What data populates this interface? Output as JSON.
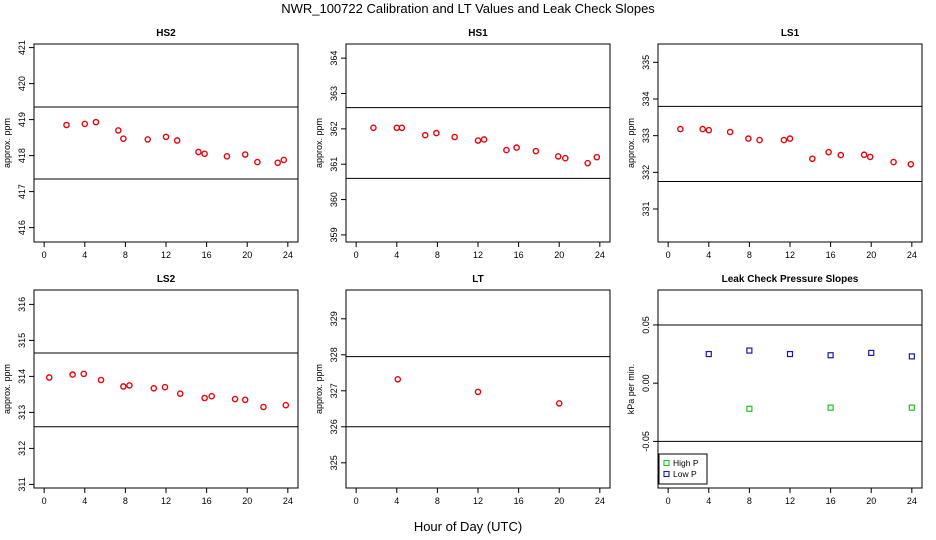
{
  "figure": {
    "title": "NWR_100722  Calibration and LT Values and Leak Check Slopes",
    "xlabel": "Hour of Day (UTC)"
  },
  "colors": {
    "red": "#e8000b",
    "green": "#22c022",
    "blue": "#1a1aaa",
    "line": "#000000"
  },
  "chart_data": [
    {
      "type": "scatter",
      "title": "HS2",
      "ylabel": "approx. ppm",
      "xlim": [
        -1,
        25
      ],
      "ylim": [
        415.6,
        421.1
      ],
      "xticks": [
        0,
        4,
        8,
        12,
        16,
        20,
        24
      ],
      "yticks": [
        416,
        417,
        418,
        419,
        420,
        421
      ],
      "hlines": [
        419.35,
        417.35
      ],
      "series": [
        {
          "color": "red",
          "marker": "circle",
          "x": [
            2.2,
            4.0,
            5.1,
            7.3,
            7.8,
            10.2,
            12.0,
            13.1,
            15.2,
            15.8,
            18.0,
            19.8,
            21.0,
            23.0,
            23.6
          ],
          "y": [
            418.85,
            418.88,
            418.93,
            418.7,
            418.47,
            418.45,
            418.52,
            418.42,
            418.1,
            418.05,
            417.98,
            418.03,
            417.82,
            417.8,
            417.88
          ]
        }
      ]
    },
    {
      "type": "scatter",
      "title": "HS1",
      "ylabel": "approx. ppm",
      "xlim": [
        -1,
        25
      ],
      "ylim": [
        358.8,
        364.4
      ],
      "xticks": [
        0,
        4,
        8,
        12,
        16,
        20,
        24
      ],
      "yticks": [
        359,
        360,
        361,
        362,
        363,
        364
      ],
      "hlines": [
        362.6,
        360.6
      ],
      "series": [
        {
          "color": "red",
          "marker": "circle",
          "x": [
            1.7,
            4.0,
            4.5,
            6.8,
            7.9,
            9.7,
            12.0,
            12.6,
            14.8,
            15.8,
            17.7,
            19.9,
            20.6,
            22.8,
            23.7
          ],
          "y": [
            362.03,
            362.03,
            362.03,
            361.82,
            361.88,
            361.77,
            361.67,
            361.7,
            361.4,
            361.47,
            361.37,
            361.22,
            361.17,
            361.03,
            361.2
          ]
        }
      ]
    },
    {
      "type": "scatter",
      "title": "LS1",
      "ylabel": "approx. ppm",
      "xlim": [
        -1,
        25
      ],
      "ylim": [
        330.1,
        335.5
      ],
      "xticks": [
        0,
        4,
        8,
        12,
        16,
        20,
        24
      ],
      "yticks": [
        331,
        332,
        333,
        334,
        335
      ],
      "hlines": [
        333.8,
        331.75
      ],
      "series": [
        {
          "color": "red",
          "marker": "circle",
          "x": [
            1.2,
            3.4,
            4.0,
            6.1,
            7.9,
            9.0,
            11.4,
            12.0,
            14.2,
            15.8,
            17.0,
            19.3,
            19.9,
            22.2,
            23.9
          ],
          "y": [
            333.18,
            333.18,
            333.15,
            333.1,
            332.92,
            332.88,
            332.88,
            332.92,
            332.37,
            332.55,
            332.47,
            332.48,
            332.42,
            332.28,
            332.22
          ]
        }
      ]
    },
    {
      "type": "scatter",
      "title": "LS2",
      "ylabel": "approx. ppm",
      "xlim": [
        -1,
        25
      ],
      "ylim": [
        310.9,
        316.4
      ],
      "xticks": [
        0,
        4,
        8,
        12,
        16,
        20,
        24
      ],
      "yticks": [
        311,
        312,
        313,
        314,
        315,
        316
      ],
      "hlines": [
        314.65,
        312.6
      ],
      "series": [
        {
          "color": "red",
          "marker": "circle",
          "x": [
            0.5,
            2.8,
            3.9,
            5.6,
            7.8,
            8.4,
            10.8,
            11.9,
            13.4,
            15.8,
            16.5,
            18.8,
            19.8,
            21.6,
            23.8
          ],
          "y": [
            313.97,
            314.05,
            314.07,
            313.9,
            313.72,
            313.75,
            313.67,
            313.7,
            313.52,
            313.4,
            313.45,
            313.37,
            313.35,
            313.15,
            313.2
          ]
        }
      ]
    },
    {
      "type": "scatter",
      "title": "LT",
      "ylabel": "approx. ppm",
      "xlim": [
        -1,
        25
      ],
      "ylim": [
        324.3,
        329.8
      ],
      "xticks": [
        0,
        4,
        8,
        12,
        16,
        20,
        24
      ],
      "yticks": [
        325,
        326,
        327,
        328,
        329
      ],
      "hlines": [
        327.95,
        326.0
      ],
      "series": [
        {
          "color": "red",
          "marker": "circle",
          "x": [
            4.1,
            12.0,
            20.0
          ],
          "y": [
            327.32,
            326.97,
            326.65
          ]
        }
      ]
    },
    {
      "type": "scatter",
      "title": "Leak Check Pressure Slopes",
      "ylabel": "kPa per min.",
      "xlim": [
        -1,
        25
      ],
      "ylim": [
        -0.09,
        0.08
      ],
      "xticks": [
        0,
        4,
        8,
        12,
        16,
        20,
        24
      ],
      "yticks": [
        -0.05,
        0.0,
        0.05
      ],
      "ytick_labels": [
        "-0.05",
        "0.00",
        "0.05"
      ],
      "hlines": [
        0.05,
        -0.05
      ],
      "legend": {
        "placement": "bottom-left",
        "entries": [
          "High P",
          "Low P"
        ]
      },
      "series": [
        {
          "name": "High P",
          "color": "green",
          "marker": "square",
          "x": [
            8.0,
            16.0,
            24.0
          ],
          "y": [
            -0.022,
            -0.021,
            -0.021
          ]
        },
        {
          "name": "Low P",
          "color": "blue",
          "marker": "square",
          "x": [
            4.0,
            8.0,
            12.0,
            16.0,
            20.0,
            24.0
          ],
          "y": [
            0.025,
            0.028,
            0.025,
            0.024,
            0.026,
            0.023
          ]
        }
      ]
    }
  ]
}
